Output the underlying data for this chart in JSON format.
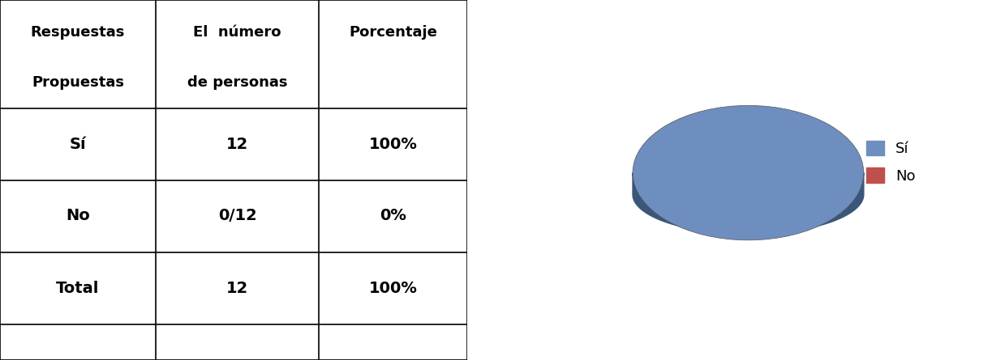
{
  "table_headers": [
    "Respuestas\nPropuestas",
    "El  número\nde personas",
    "Porcentaje"
  ],
  "table_rows": [
    [
      "Sí",
      "12",
      "100%"
    ],
    [
      "No",
      "0/12",
      "0%"
    ],
    [
      "Total",
      "12",
      "100%"
    ]
  ],
  "pie_values": [
    100,
    0.0001
  ],
  "pie_labels": [
    "Sí",
    "No"
  ],
  "pie_colors": [
    "#6E8EBF",
    "#C0504D"
  ],
  "pie_shadow_color": "#3A567A",
  "legend_labels": [
    "Sí",
    "No"
  ],
  "legend_colors": [
    "#6E8EBF",
    "#C0504D"
  ],
  "background_color": "#FFFFFF",
  "chart_bg": "#FFFFFF",
  "border_color": "#AAAAAA"
}
